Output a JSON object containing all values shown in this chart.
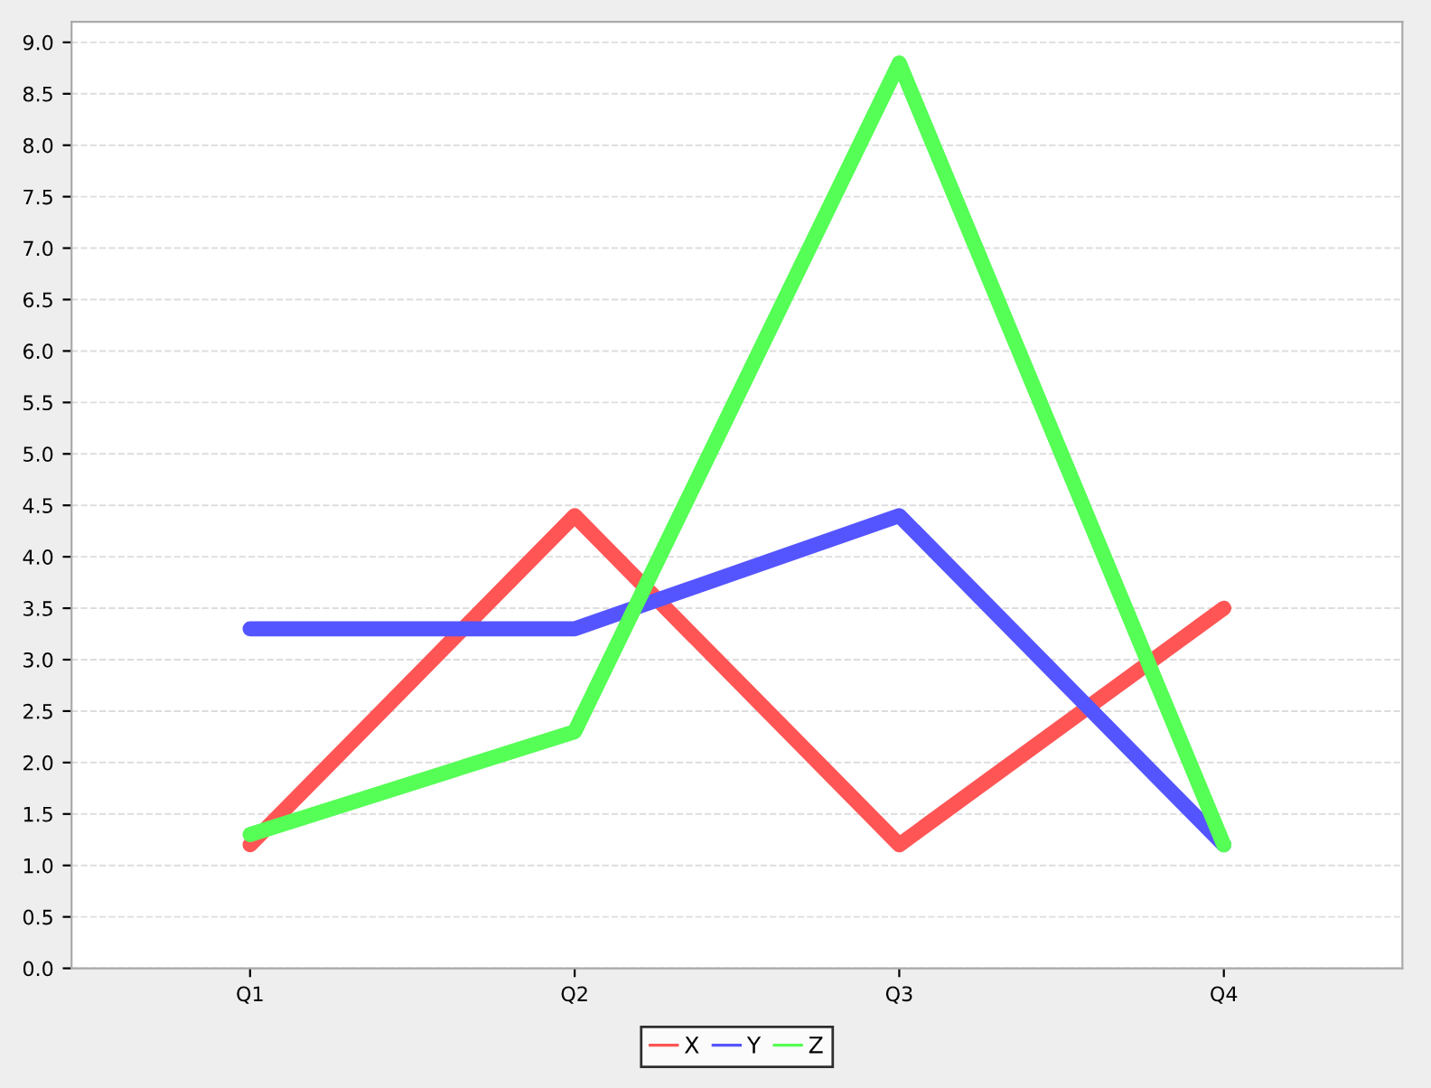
{
  "chart_data": {
    "type": "line",
    "categories": [
      "Q1",
      "Q2",
      "Q3",
      "Q4"
    ],
    "series": [
      {
        "name": "X",
        "color": "#ff5555",
        "values": [
          1.2,
          4.4,
          1.2,
          3.5
        ]
      },
      {
        "name": "Y",
        "color": "#5555ff",
        "values": [
          3.3,
          3.3,
          4.4,
          1.2
        ]
      },
      {
        "name": "Z",
        "color": "#55ff55",
        "values": [
          1.3,
          2.3,
          8.8,
          1.2
        ]
      }
    ],
    "ylim": [
      0,
      9.2
    ],
    "yticks": [
      {
        "value": 0,
        "label": "0.0"
      },
      {
        "value": 0.5,
        "label": "0.5"
      },
      {
        "value": 1,
        "label": "1.0"
      },
      {
        "value": 1.5,
        "label": "1.5"
      },
      {
        "value": 2,
        "label": "2.0"
      },
      {
        "value": 2.5,
        "label": "2.5"
      },
      {
        "value": 3,
        "label": "3.0"
      },
      {
        "value": 3.5,
        "label": "3.5"
      },
      {
        "value": 4,
        "label": "4.0"
      },
      {
        "value": 4.5,
        "label": "4.5"
      },
      {
        "value": 5,
        "label": "5.0"
      },
      {
        "value": 5.5,
        "label": "5.5"
      },
      {
        "value": 6,
        "label": "6.0"
      },
      {
        "value": 6.5,
        "label": "6.5"
      },
      {
        "value": 7,
        "label": "7.0"
      },
      {
        "value": 7.5,
        "label": "7.5"
      },
      {
        "value": 8,
        "label": "8.0"
      },
      {
        "value": 8.5,
        "label": "8.5"
      },
      {
        "value": 9,
        "label": "9.0"
      }
    ],
    "grid": "y",
    "legend": "bottom",
    "line_style": "solid",
    "marker": "none"
  }
}
